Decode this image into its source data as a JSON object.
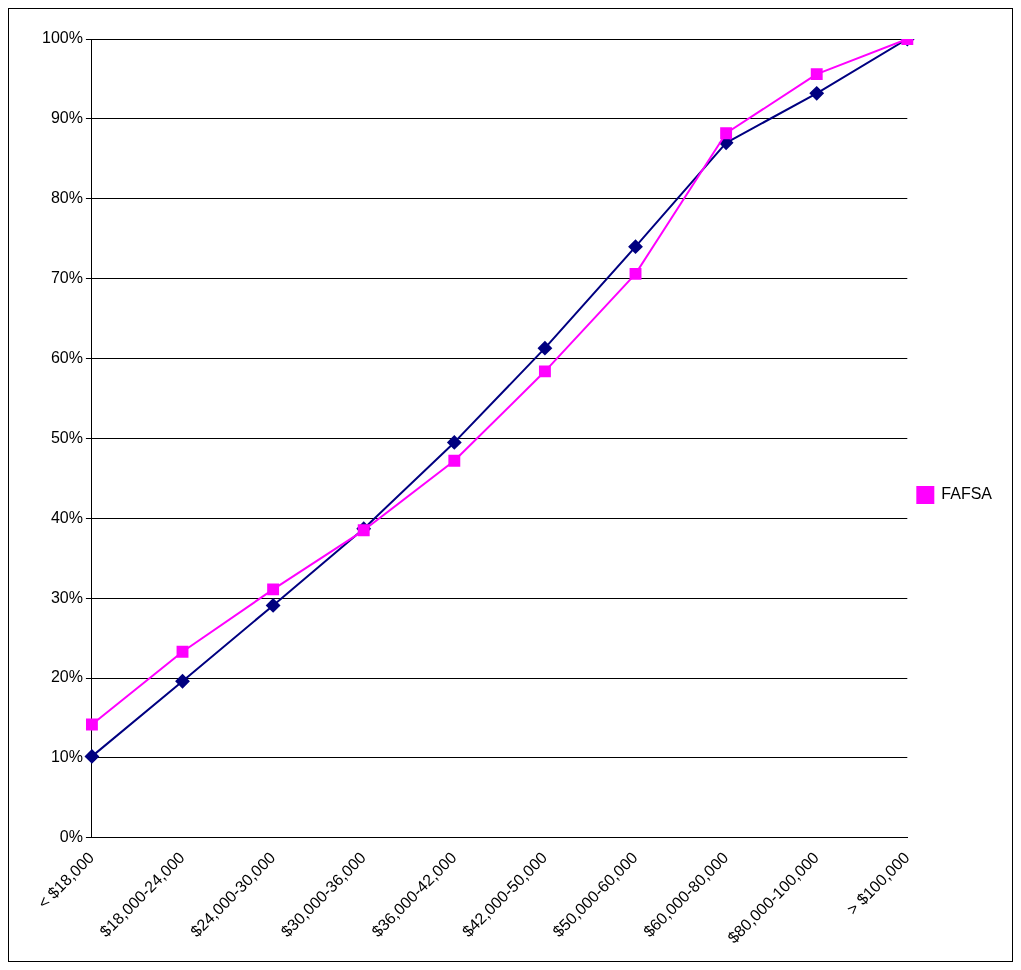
{
  "chart_data": {
    "type": "line",
    "categories": [
      "< $18,000",
      "$18,000-24,000",
      "$24,000-30,000",
      "$30,000-36,000",
      "$36,000-42,000",
      "$42,000-50,000",
      "$50,000-60,000",
      "$60,000-80,000",
      "$80,000-100,000",
      "> $100,000"
    ],
    "series": [
      {
        "color": "#000080",
        "marker": "diamond",
        "values": [
          10.2,
          19.6,
          29.1,
          38.7,
          49.5,
          61.3,
          74,
          87,
          93.2,
          100
        ]
      },
      {
        "name": "FAFSA",
        "color": "#ff00ff",
        "marker": "square",
        "values": [
          14.2,
          23.3,
          31.1,
          38.5,
          47.2,
          58.4,
          70.6,
          88.2,
          95.6,
          100
        ]
      }
    ],
    "ylim": [
      0,
      100
    ],
    "yticks": [
      {
        "value": 0,
        "label": "0%"
      },
      {
        "value": 10,
        "label": "10%"
      },
      {
        "value": 20,
        "label": "20%"
      },
      {
        "value": 30,
        "label": "30%"
      },
      {
        "value": 40,
        "label": "40%"
      },
      {
        "value": 50,
        "label": "50%"
      },
      {
        "value": 60,
        "label": "60%"
      },
      {
        "value": 70,
        "label": "70%"
      },
      {
        "value": 80,
        "label": "80%"
      },
      {
        "value": 90,
        "label": "90%"
      },
      {
        "value": 100,
        "label": "100%"
      }
    ],
    "grid": "y",
    "legend": "right",
    "line_style": "solid"
  }
}
